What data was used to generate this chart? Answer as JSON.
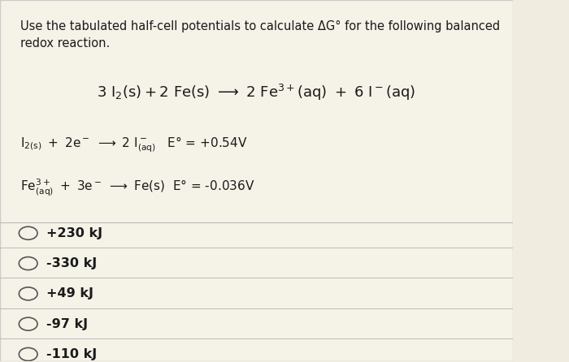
{
  "background_color": "#f0ece0",
  "panel_color": "#f5f2e8",
  "border_color": "#cccccc",
  "title_text": "Use the tabulated half-cell potentials to calculate ΔG° for the following balanced\nredox reaction.",
  "reaction_main": "3 I₂(s) + 2 Fe(s)  →  2 Fe³⁺(aq) + 6 I⁻(aq)",
  "half_reaction_1": "I₂(s) + 2e⁻ → 2 I⁻(aq)   E° = +0.54V",
  "half_reaction_2": "Fe³⁺(aq) + 3e⁻ → Fe(s) E° = -0.036V",
  "options": [
    "+230 kJ",
    "-330 kJ",
    "+49 kJ",
    "-97 kJ",
    "-110 kJ"
  ],
  "divider_color": "#bbbbbb",
  "text_color": "#1a1a1a",
  "option_circle_color": "#555555",
  "font_size_title": 10.5,
  "font_size_reaction": 13,
  "font_size_half": 11,
  "font_size_option": 11.5
}
